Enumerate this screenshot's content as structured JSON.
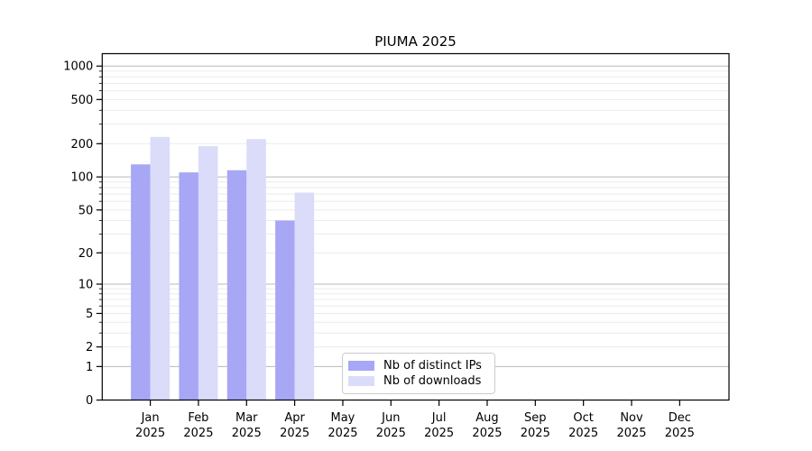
{
  "chart_data": {
    "type": "bar",
    "title": "PIUMA 2025",
    "categories": [
      "Jan",
      "Feb",
      "Mar",
      "Apr",
      "May",
      "Jun",
      "Jul",
      "Aug",
      "Sep",
      "Oct",
      "Nov",
      "Dec"
    ],
    "category_year_line": "2025",
    "series": [
      {
        "name": "Nb of distinct IPs",
        "color": "#a7a7f6",
        "values": [
          130,
          110,
          115,
          40,
          0,
          0,
          0,
          0,
          0,
          0,
          0,
          0
        ]
      },
      {
        "name": "Nb of downloads",
        "color": "#dbdbfa",
        "values": [
          230,
          190,
          220,
          72,
          0,
          0,
          0,
          0,
          0,
          0,
          0,
          0
        ]
      }
    ],
    "xlabel": "",
    "ylabel": "",
    "y_scale": "log1p",
    "y_ticks": [
      0,
      1,
      2,
      5,
      10,
      20,
      50,
      100,
      200,
      500,
      1000
    ],
    "ylim": [
      0,
      1280
    ],
    "grid": {
      "major": true,
      "minor": true
    },
    "legend_position": "lower center-left inside plot",
    "colors": {
      "axis": "#000000",
      "tick_label": "#000000",
      "major_grid": "#b8b8b8",
      "minor_grid": "#ebebeb",
      "background": "#ffffff"
    }
  }
}
